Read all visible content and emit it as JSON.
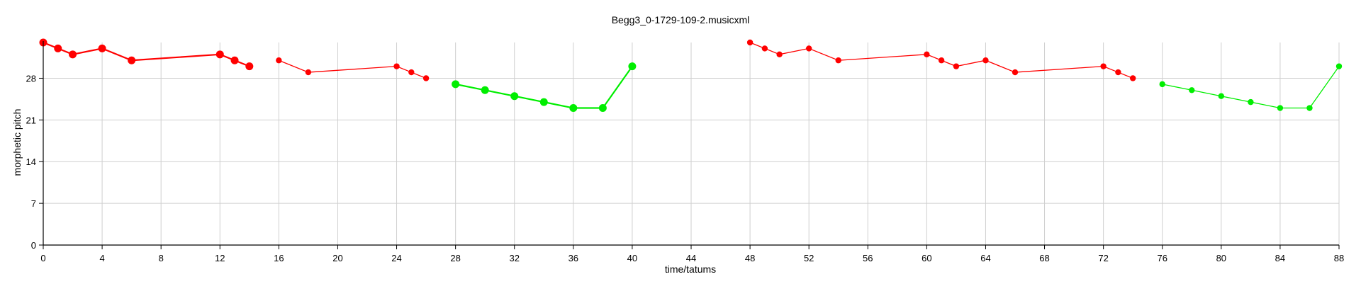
{
  "chart_data": {
    "type": "line",
    "title": "Begg3_0-1729-109-2.musicxml",
    "xlabel": "time/tatums",
    "ylabel": "morphetic pitch",
    "xlim": [
      0,
      88
    ],
    "ylim": [
      0,
      34
    ],
    "xticks": [
      0,
      4,
      8,
      12,
      16,
      20,
      24,
      28,
      32,
      36,
      40,
      44,
      48,
      52,
      56,
      60,
      64,
      68,
      72,
      76,
      80,
      84,
      88
    ],
    "yticks": [
      0,
      7,
      14,
      21,
      28
    ],
    "grid": true,
    "series": [
      {
        "color": "#ff0000",
        "marker": "large",
        "x": [
          0,
          1,
          2,
          4,
          6,
          12,
          13,
          14
        ],
        "y": [
          34,
          33,
          32,
          33,
          31,
          32,
          31,
          30
        ]
      },
      {
        "color": "#ff0000",
        "marker": "small",
        "x": [
          16,
          18,
          24,
          25,
          26
        ],
        "y": [
          31,
          29,
          30,
          29,
          28
        ]
      },
      {
        "color": "#00ee00",
        "marker": "large",
        "x": [
          28,
          30,
          32,
          34,
          36,
          38,
          40
        ],
        "y": [
          27,
          26,
          25,
          24,
          23,
          23,
          30
        ]
      },
      {
        "color": "#ff0000",
        "marker": "small",
        "x": [
          48,
          49,
          50,
          52,
          54,
          60,
          61,
          62,
          64,
          66,
          72,
          73,
          74
        ],
        "y": [
          34,
          33,
          32,
          33,
          31,
          32,
          31,
          30,
          31,
          29,
          30,
          29,
          28
        ]
      },
      {
        "color": "#00ee00",
        "marker": "small",
        "x": [
          76,
          78,
          80,
          82,
          84,
          86,
          88
        ],
        "y": [
          27,
          26,
          25,
          24,
          23,
          23,
          30
        ]
      }
    ]
  }
}
